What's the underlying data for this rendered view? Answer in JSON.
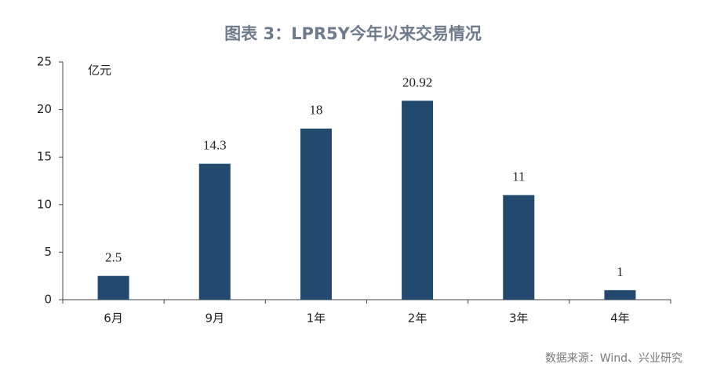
{
  "chart_data": {
    "type": "bar",
    "title": "图表 3：LPR5Y今年以来交易情况",
    "unit_label": "亿元",
    "categories": [
      "6月",
      "9月",
      "1年",
      "2年",
      "3年",
      "4年"
    ],
    "values": [
      2.5,
      14.3,
      18,
      20.92,
      11,
      1
    ],
    "color": "#23496f",
    "ylim": [
      0,
      25
    ],
    "yticks": [
      0,
      5,
      10,
      15,
      20,
      25
    ],
    "source": "数据来源：Wind、兴业研究"
  }
}
